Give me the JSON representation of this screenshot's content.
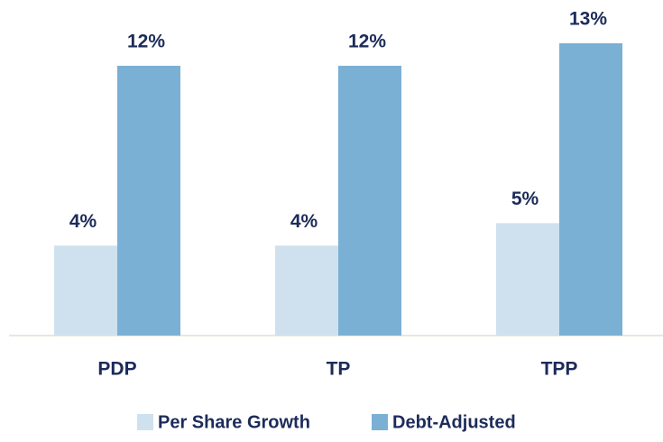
{
  "chart_data": {
    "type": "bar",
    "categories": [
      "PDP",
      "TP",
      "TPP"
    ],
    "series": [
      {
        "name": "Per Share Growth",
        "color": "#cfe1ee",
        "values": [
          4,
          4,
          5
        ],
        "value_labels": [
          "4%",
          "4%",
          "5%"
        ]
      },
      {
        "name": "Debt-Adjusted",
        "color": "#7bb0d5",
        "values": [
          12,
          12,
          13
        ],
        "value_labels": [
          "12%",
          "12%",
          "13%"
        ]
      }
    ],
    "legend": "bottom"
  }
}
